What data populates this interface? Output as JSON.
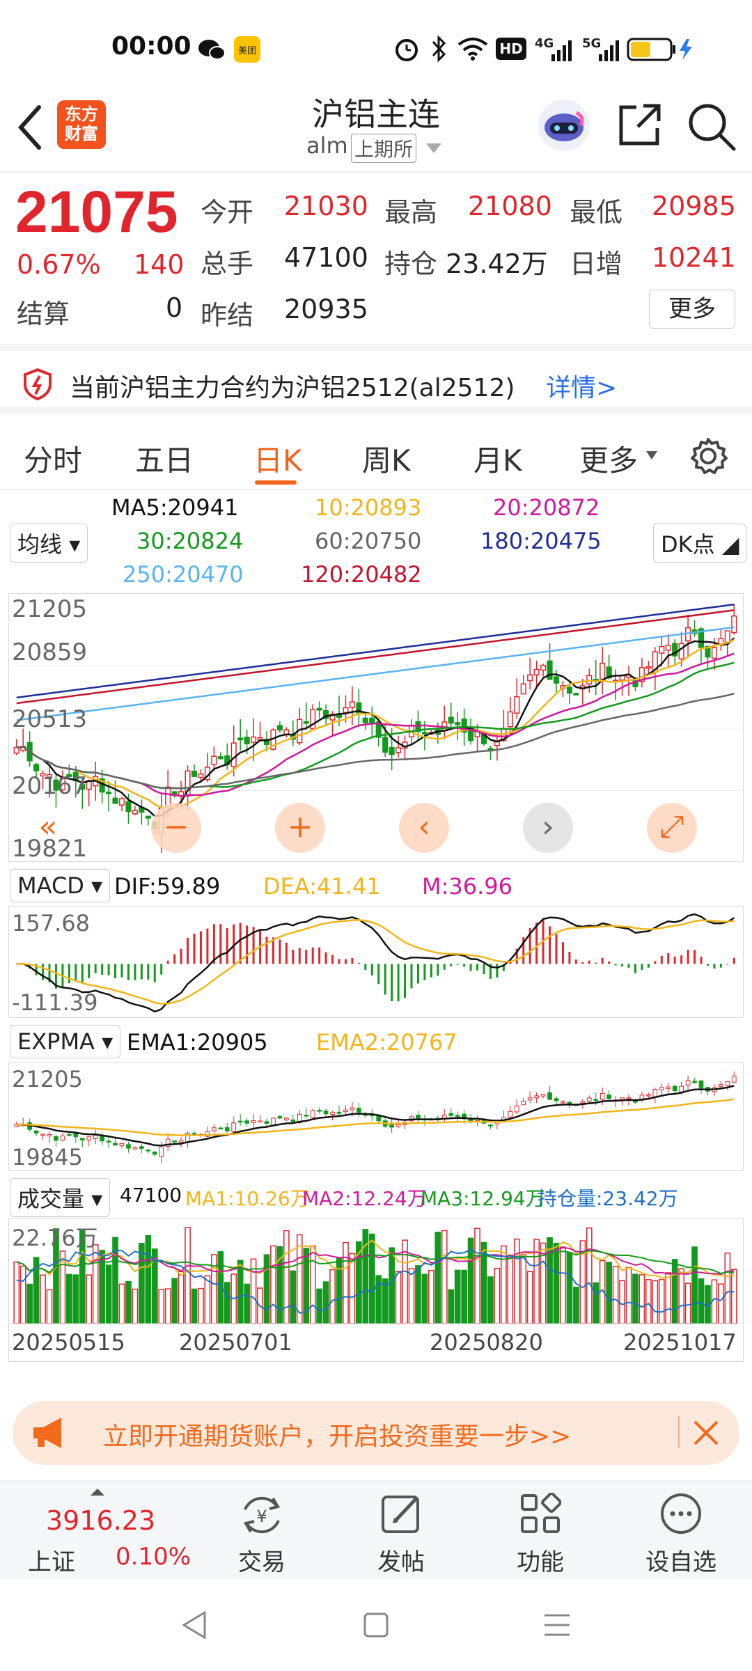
{
  "status_bar": {
    "time": "00:00",
    "hd_label": "HD",
    "net1": "4G",
    "net2": "5G"
  },
  "header": {
    "logo_line1": "东方",
    "logo_line2": "财富",
    "title": "沪铝主连",
    "code": "alm",
    "exchange": "上期所"
  },
  "quote": {
    "price": "21075",
    "change_pct": "0.67%",
    "change": "140",
    "settle_label": "结算",
    "settle_value": "0",
    "open_label": "今开",
    "open_value": "21030",
    "high_label": "最高",
    "high_value": "21080",
    "low_label": "最低",
    "low_value": "20985",
    "volume_label": "总手",
    "volume_value": "47100",
    "oi_label": "持仓",
    "oi_value": "23.42万",
    "daily_inc_label": "日增",
    "daily_inc_value": "10241",
    "prev_settle_label": "昨结",
    "prev_settle_value": "20935",
    "more_button": "更多"
  },
  "notice": {
    "text": "当前沪铝主力合约为沪铝2512(al2512)",
    "link": "详情>"
  },
  "tabs": [
    {
      "label": "分时"
    },
    {
      "label": "五日"
    },
    {
      "label": "日K",
      "active": true
    },
    {
      "label": "周K"
    },
    {
      "label": "月K"
    },
    {
      "label": "更多"
    }
  ],
  "ma_legend": {
    "selector": "均线",
    "dk_button": "DK点",
    "items": [
      {
        "text": "MA5:20941",
        "color": "#111111"
      },
      {
        "text": "10:20893",
        "color": "#f2b519"
      },
      {
        "text": "20:20872",
        "color": "#d0189a"
      },
      {
        "text": "30:20824",
        "color": "#139a1e"
      },
      {
        "text": "60:20750",
        "color": "#666666"
      },
      {
        "text": "180:20475",
        "color": "#1f2f9a"
      },
      {
        "text": "250:20470",
        "color": "#59b4f0"
      },
      {
        "text": "120:20482",
        "color": "#c4142c"
      }
    ]
  },
  "kline_axis": [
    "21205",
    "20859",
    "20513",
    "20167",
    "19821"
  ],
  "macd": {
    "selector": "MACD",
    "dif": "DIF:59.89",
    "dea": "DEA:41.41",
    "m": "M:36.96",
    "axis_top": "157.68",
    "axis_bottom": "-111.39"
  },
  "expma": {
    "selector": "EXPMA",
    "ema1": "EMA1:20905",
    "ema2": "EMA2:20767",
    "axis_top": "21205",
    "axis_bottom": "19845"
  },
  "volume": {
    "selector": "成交量",
    "vol": "47100",
    "ma1": "MA1:10.26万",
    "ma2": "MA2:12.24万",
    "ma3": "MA3:12.94万",
    "oi": "持仓量:23.42万",
    "axis_top": "22.76万"
  },
  "dates": [
    "20250515",
    "20250701",
    "20250820",
    "20251017"
  ],
  "banner": {
    "text": "立即开通期货账户，开启投资重要一步>>"
  },
  "bottom_nav": {
    "index_value": "3916.23",
    "index_name": "上证",
    "index_change": "0.10%",
    "items": [
      {
        "label": "交易"
      },
      {
        "label": "发帖"
      },
      {
        "label": "功能"
      },
      {
        "label": "设自选"
      }
    ]
  }
}
